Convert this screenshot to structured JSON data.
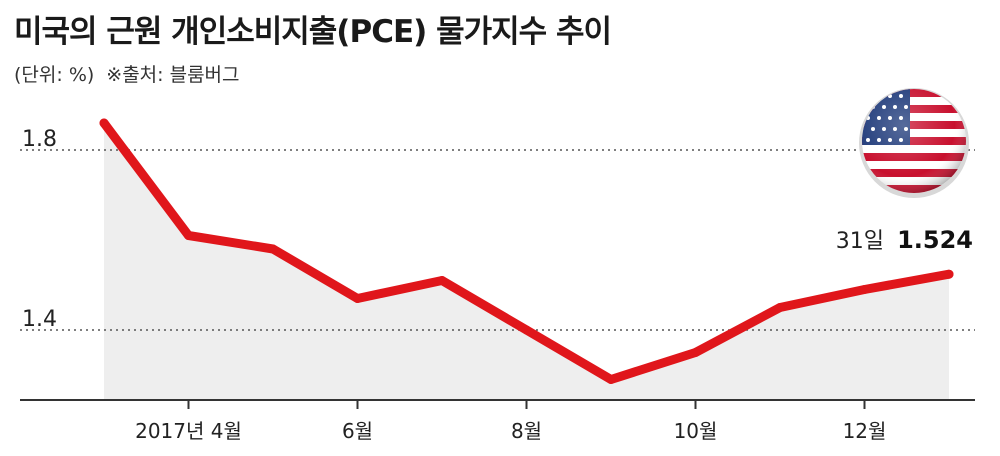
{
  "title": "미국의 근원 개인소비지출(PCE) 물가지수 추이",
  "unit": "(단위: %)",
  "source": "※출처: 블룸버그",
  "flag_icon": "us-flag-icon",
  "colors": {
    "line": "#e0161b",
    "area": "#eeeeee",
    "axis": "#333333",
    "grid": "#555555"
  },
  "chart_data": {
    "type": "line",
    "x": [
      "2017-03",
      "2017-04",
      "2017-05",
      "2017-06",
      "2017-07",
      "2017-08",
      "2017-09",
      "2017-10",
      "2017-11",
      "2017-12",
      "2018-01"
    ],
    "tick_labels": [
      {
        "at": "2017-04",
        "label": "2017년 4월"
      },
      {
        "at": "2017-06",
        "label": "6월"
      },
      {
        "at": "2017-08",
        "label": "8월"
      },
      {
        "at": "2017-10",
        "label": "10월"
      },
      {
        "at": "2017-12",
        "label": "12월"
      }
    ],
    "series": [
      {
        "values": [
          1.86,
          1.61,
          1.58,
          1.47,
          1.51,
          1.4,
          1.29,
          1.35,
          1.45,
          1.49,
          1.524
        ]
      }
    ],
    "y_ticks": [
      "1.8",
      "1.4"
    ],
    "ylim": [
      1.25,
      1.92
    ],
    "grid": "dotted horizontal",
    "last_label": "31일",
    "last_value": "1.524"
  }
}
